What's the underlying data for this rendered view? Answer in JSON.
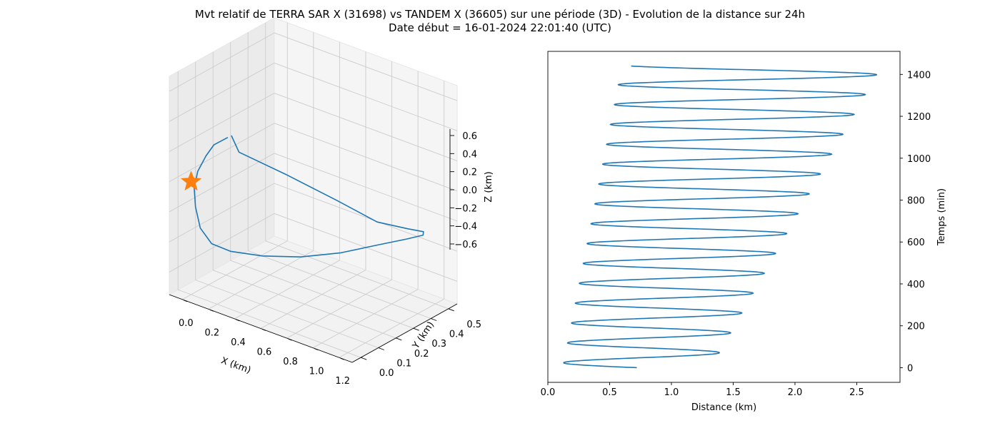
{
  "figure": {
    "title_line1": "Mvt relatif de TERRA SAR X (31698) vs TANDEM X (36605) sur une période (3D) - Evolution de la distance sur 24h",
    "title_line2": "Date début = 16-01-2024 22:01:40 (UTC)"
  },
  "colors": {
    "series": "#1f77b4",
    "marker": "#ff7f0e",
    "pane": "#f2f2f2",
    "grid": "#cccccc"
  },
  "chart_data": [
    {
      "type": "line",
      "projection": "3d",
      "xlabel": "X (km)",
      "ylabel": "Y (km)",
      "zlabel": "Z (km)",
      "xlim": [
        -0.1,
        1.3
      ],
      "ylim": [
        -0.05,
        0.55
      ],
      "zlim": [
        -0.75,
        0.7
      ],
      "xticks": [
        "0.0",
        "0.2",
        "0.4",
        "0.6",
        "0.8",
        "1.0",
        "1.2"
      ],
      "yticks": [
        "0.0",
        "0.1",
        "0.2",
        "0.3",
        "0.4",
        "0.5"
      ],
      "zticks": [
        "0.6",
        "0.4",
        "0.2",
        "0.0",
        "−0.2",
        "−0.4",
        "−0.6"
      ],
      "grid": true,
      "marker": {
        "shape": "star",
        "x": 0.0,
        "y": 0.0,
        "z": 0.0
      },
      "orbit_points": [
        [
          0.04,
          0.2,
          0.19
        ],
        [
          0.3,
          0.05,
          0.26
        ],
        [
          0.7,
          0.02,
          0.26
        ],
        [
          1.05,
          0.05,
          0.18
        ],
        [
          1.25,
          0.13,
          0.05
        ],
        [
          1.31,
          0.26,
          -0.06
        ],
        [
          1.27,
          0.38,
          -0.17
        ],
        [
          1.16,
          0.46,
          -0.28
        ],
        [
          0.98,
          0.5,
          -0.39
        ],
        [
          0.76,
          0.5,
          -0.5
        ],
        [
          0.53,
          0.46,
          -0.6
        ],
        [
          0.33,
          0.38,
          -0.64
        ],
        [
          0.17,
          0.28,
          -0.62
        ],
        [
          0.06,
          0.18,
          -0.56
        ],
        [
          0.01,
          0.11,
          -0.48
        ],
        [
          -0.01,
          0.06,
          -0.35
        ],
        [
          -0.02,
          0.04,
          -0.2
        ],
        [
          -0.03,
          0.04,
          -0.08
        ],
        [
          -0.03,
          0.06,
          0.02
        ],
        [
          -0.02,
          0.1,
          0.1
        ],
        [
          0.0,
          0.13,
          0.16
        ],
        [
          0.04,
          0.18,
          0.19
        ]
      ]
    },
    {
      "type": "line",
      "xlabel": "Distance (km)",
      "ylabel": "Temps (min)",
      "xlim": [
        0,
        2.85
      ],
      "ylim": [
        -70,
        1510
      ],
      "xticks": [
        0.0,
        0.5,
        1.0,
        1.5,
        2.0,
        2.5
      ],
      "xtick_labels": [
        "0.0",
        "0.5",
        "1.0",
        "1.5",
        "2.0",
        "2.5"
      ],
      "yticks": [
        0,
        200,
        400,
        600,
        800,
        1000,
        1200,
        1400
      ],
      "ytick_labels": [
        "0",
        "200",
        "400",
        "600",
        "800",
        "1000",
        "1200",
        "1400"
      ],
      "yaxis_position": "right",
      "series": [
        {
          "time_range": [
            0,
            1440
          ],
          "period_min": 94.8,
          "center_start": 0.72,
          "center_end": 1.65,
          "amplitude_start": 0.6,
          "amplitude_end": 1.05,
          "phase_start": "center, moving toward minimum"
        }
      ]
    }
  ]
}
